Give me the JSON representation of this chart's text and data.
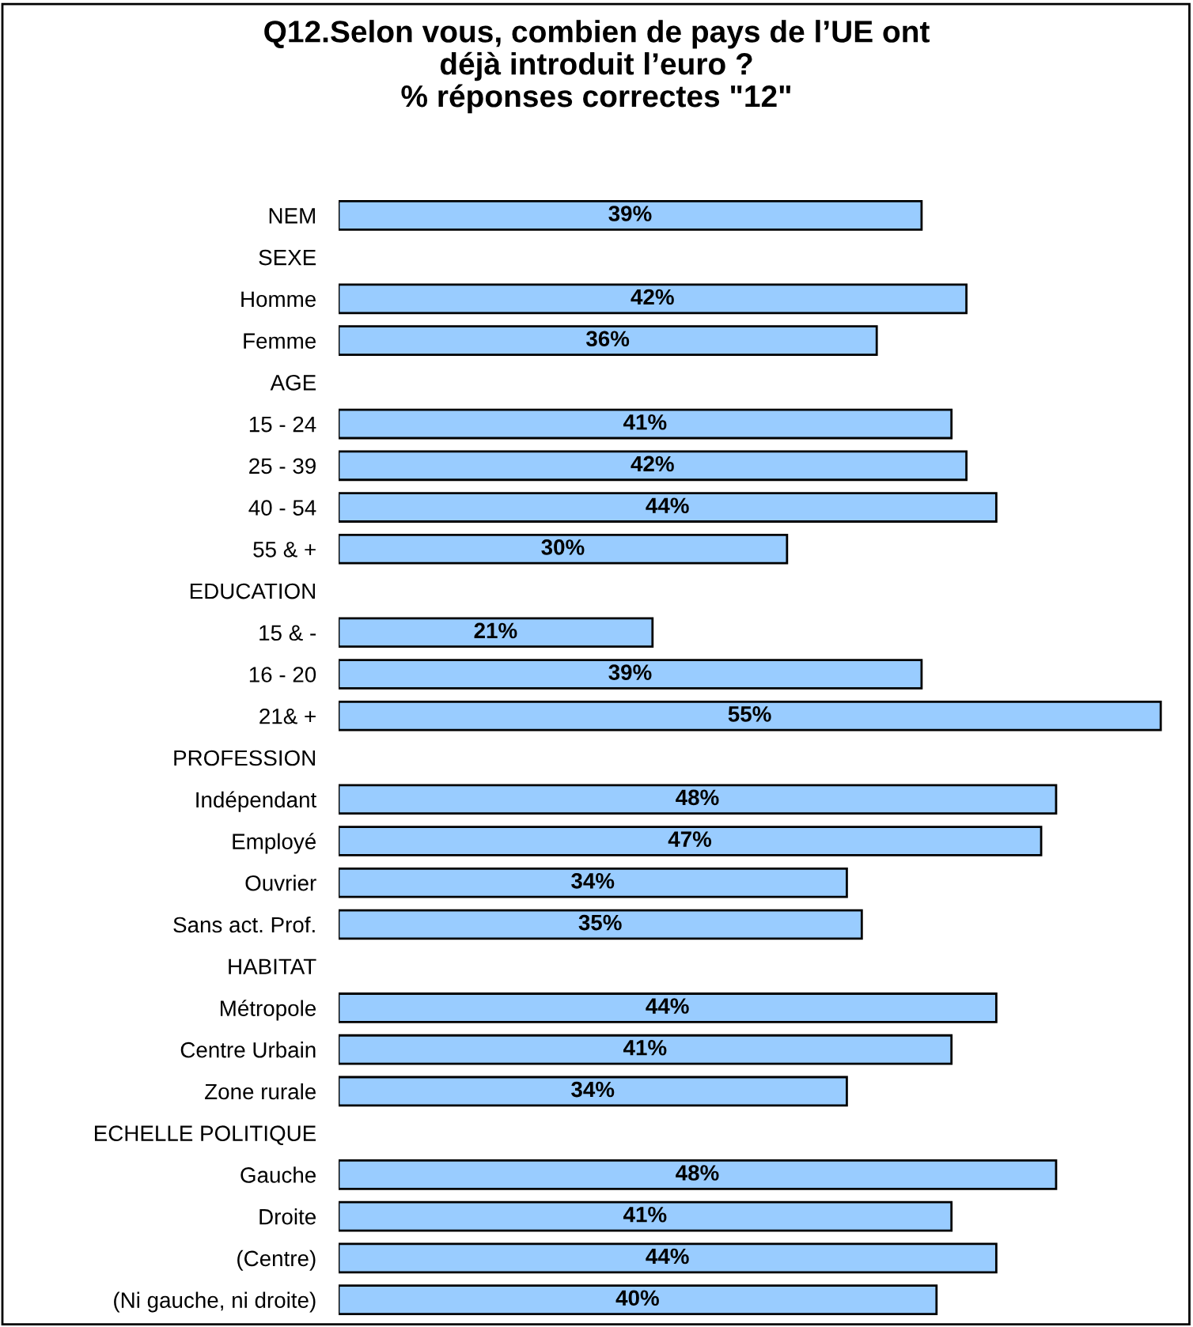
{
  "chart_data": {
    "type": "bar",
    "orientation": "horizontal",
    "title": "Q12.Selon vous, combien de pays de l’UE ont\ndéjà introduit l’euro ?\n% réponses correctes \"12\"",
    "categories": [
      "NEM",
      "SEXE",
      "Homme",
      "Femme",
      "AGE",
      "15 - 24",
      "25 - 39",
      "40 - 54",
      "55 & +",
      "EDUCATION",
      "15 & -",
      "16 - 20",
      "21& +",
      "PROFESSION",
      "Indépendant",
      "Employé",
      "Ouvrier",
      "Sans act. Prof.",
      "HABITAT",
      "Métropole",
      "Centre Urbain",
      "Zone rurale",
      "ECHELLE POLITIQUE",
      "Gauche",
      "Droite",
      "(Centre)",
      "(Ni gauche, ni droite)"
    ],
    "values": [
      39,
      null,
      42,
      36,
      null,
      41,
      42,
      44,
      30,
      null,
      21,
      39,
      55,
      null,
      48,
      47,
      34,
      35,
      null,
      44,
      41,
      34,
      null,
      48,
      41,
      44,
      40
    ],
    "value_labels": [
      "39%",
      null,
      "42%",
      "36%",
      null,
      "41%",
      "42%",
      "44%",
      "30%",
      null,
      "21%",
      "39%",
      "55%",
      null,
      "48%",
      "47%",
      "34%",
      "35%",
      null,
      "44%",
      "41%",
      "34%",
      null,
      "48%",
      "41%",
      "44%",
      "40%"
    ],
    "color": "#99ccff",
    "grid": false,
    "legend": false
  }
}
